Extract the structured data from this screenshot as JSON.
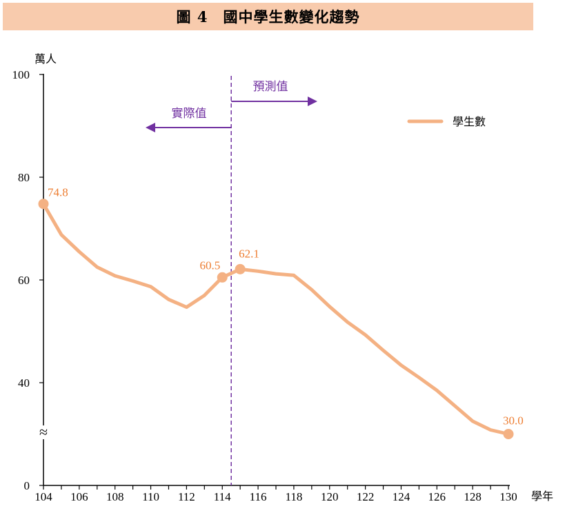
{
  "chart_data": {
    "type": "line",
    "title": "圖 4　國中學生數變化趨勢",
    "ylabel": "萬人",
    "xlabel": "學年",
    "ylim": [
      0,
      100
    ],
    "axis_break": "≈",
    "y_ticks": [
      {
        "label": "100",
        "value": 100
      },
      {
        "label": "80",
        "value": 80
      },
      {
        "label": "60",
        "value": 60
      },
      {
        "label": "40",
        "value": 40
      },
      {
        "label": "0",
        "value": 0
      }
    ],
    "x_tick_labels": [
      "104",
      "106",
      "108",
      "110",
      "112",
      "114",
      "116",
      "118",
      "120",
      "122",
      "124",
      "126",
      "128",
      "130"
    ],
    "series": [
      {
        "name": "學生數",
        "color": "#f4b183",
        "x": [
          104,
          105,
          106,
          107,
          108,
          109,
          110,
          111,
          112,
          113,
          114,
          115,
          116,
          117,
          118,
          119,
          120,
          121,
          122,
          123,
          124,
          125,
          126,
          127,
          128,
          129,
          130
        ],
        "values": [
          74.8,
          68.8,
          65.5,
          62.5,
          60.8,
          59.8,
          58.7,
          56.2,
          54.7,
          57.0,
          60.5,
          62.1,
          61.7,
          61.2,
          60.9,
          58.1,
          54.8,
          51.8,
          49.3,
          46.3,
          43.4,
          41.0,
          38.5,
          35.5,
          32.5,
          30.8,
          30.0
        ]
      }
    ],
    "highlight_points": [
      {
        "x": 104,
        "value": 74.8,
        "label": "74.8"
      },
      {
        "x": 114,
        "value": 60.5,
        "label": "60.5"
      },
      {
        "x": 115,
        "value": 62.1,
        "label": "62.1"
      },
      {
        "x": 130,
        "value": 30.0,
        "label": "30.0"
      }
    ],
    "divider_x": 114.5,
    "annotations": {
      "actual": "實際值",
      "forecast": "預測值"
    },
    "colors": {
      "line": "#f4b183",
      "points": "#f4b183",
      "data_labels": "#ed7d31",
      "annotation": "#7030a0",
      "title_bg": "#f8cbad"
    },
    "legend_position": "top-right"
  }
}
